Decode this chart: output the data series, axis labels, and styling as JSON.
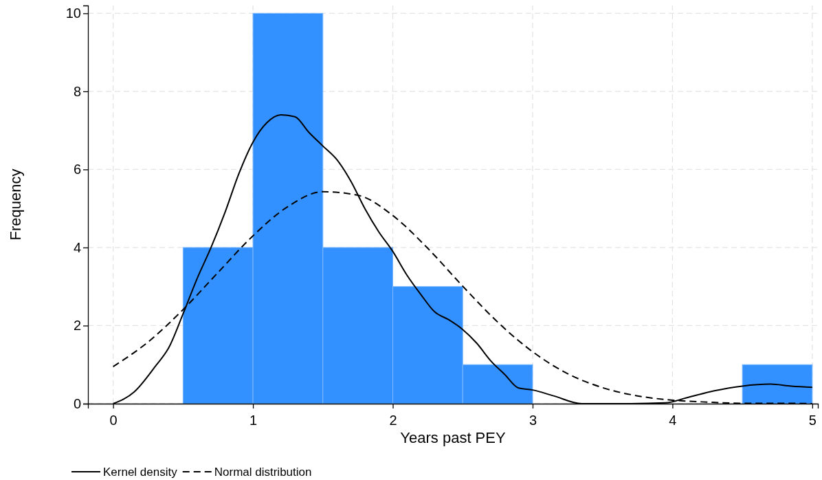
{
  "chart_data": {
    "type": "histogram",
    "xlabel": "Years past PEY",
    "ylabel": "Frequency",
    "bins": [
      0.5,
      1,
      1.5,
      2,
      2.5,
      3,
      3.5,
      4,
      4.5,
      5
    ],
    "values": [
      4,
      10,
      4,
      3,
      1,
      0,
      0,
      0,
      1
    ],
    "color": "#3391ff",
    "xlim": [
      -0.18,
      5.04
    ],
    "ylim": [
      0,
      10.2
    ],
    "xticks": [
      0,
      1,
      2,
      3,
      4,
      5
    ],
    "yticks": [
      0,
      2,
      4,
      6,
      8,
      10
    ],
    "grid": true,
    "legend": "bottom",
    "series": [
      {
        "name": "Kernel density",
        "type": "line",
        "color": "#000000",
        "line_style": "solid",
        "x": [
          0,
          0.15,
          0.3,
          0.4,
          0.5,
          0.6,
          0.7,
          0.8,
          0.9,
          1.0,
          1.1,
          1.2,
          1.3,
          1.4,
          1.5,
          1.6,
          1.7,
          1.8,
          1.9,
          2.0,
          2.1,
          2.2,
          2.3,
          2.4,
          2.5,
          2.6,
          2.7,
          2.8,
          2.9,
          3.0,
          3.15,
          3.35,
          3.7,
          3.95,
          4.1,
          4.3,
          4.5,
          4.7,
          4.85,
          5.0
        ],
        "values": [
          0,
          0.3,
          0.95,
          1.45,
          2.3,
          3.2,
          4.0,
          4.9,
          5.9,
          6.7,
          7.2,
          7.4,
          7.35,
          6.95,
          6.6,
          6.25,
          5.7,
          5.0,
          4.4,
          3.9,
          3.3,
          2.8,
          2.35,
          2.15,
          1.9,
          1.55,
          1.1,
          0.75,
          0.4,
          0.35,
          0.2,
          0,
          0,
          0.02,
          0.15,
          0.33,
          0.45,
          0.5,
          0.45,
          0.42
        ]
      },
      {
        "name": "Normal distribution",
        "type": "line",
        "color": "#000000",
        "line_style": "dashed",
        "x": [
          0,
          0.25,
          0.5,
          0.75,
          1.0,
          1.25,
          1.5,
          1.75,
          2.0,
          2.25,
          2.5,
          2.75,
          3.0,
          3.25,
          3.5,
          3.75,
          4.0,
          4.25,
          4.5,
          4.75,
          5.0
        ],
        "values": [
          0.95,
          1.58,
          2.41,
          3.36,
          4.3,
          5.05,
          5.43,
          5.34,
          4.82,
          3.98,
          3.01,
          2.09,
          1.33,
          0.77,
          0.41,
          0.2,
          0.09,
          0.04,
          0.01,
          0.01,
          0
        ]
      }
    ]
  }
}
